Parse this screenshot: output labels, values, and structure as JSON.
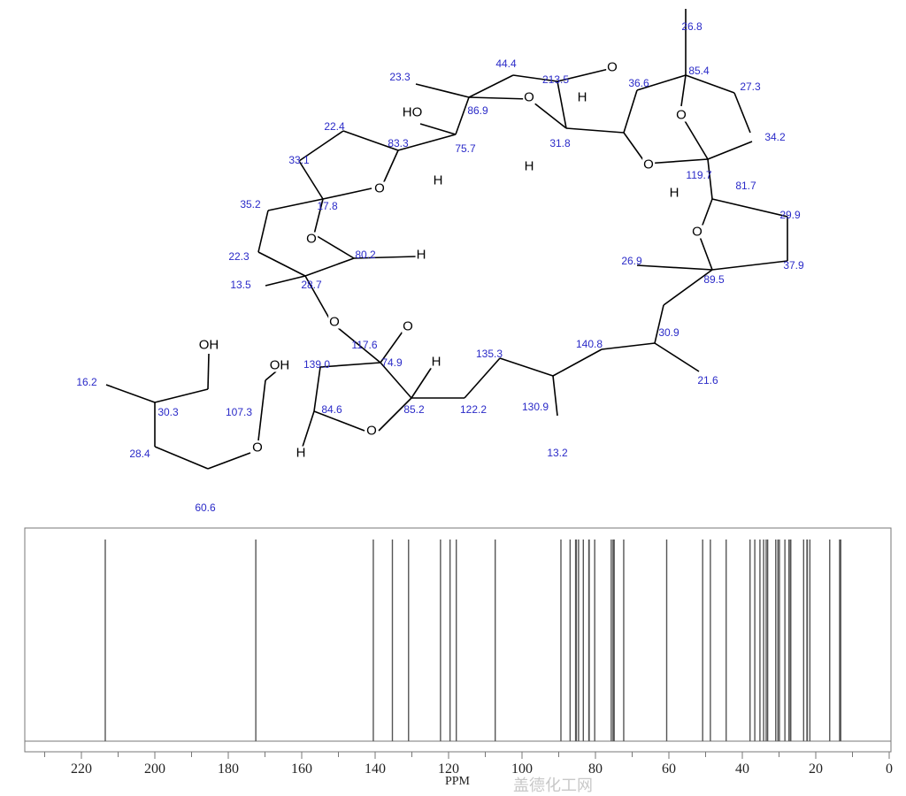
{
  "structure": {
    "shift_labels": [
      "26.8",
      "85.4",
      "27.3",
      "34.2",
      "36.6",
      "213.5",
      "44.4",
      "23.3",
      "86.9",
      "22.4",
      "83.3",
      "75.7",
      "31.8",
      "119.7",
      "81.7",
      "33.1",
      "17.8",
      "35.2",
      "29.9",
      "22.3",
      "80.2",
      "26.9",
      "89.5",
      "37.9",
      "13.5",
      "28.7",
      "30.9",
      "140.8",
      "135.3",
      "74.9",
      "117.6",
      "139.0",
      "21.6",
      "16.2",
      "30.3",
      "107.3",
      "84.6",
      "85.2",
      "122.2",
      "130.9",
      "13.2",
      "28.4",
      "60.6"
    ],
    "atom_labels": [
      "O",
      "O",
      "O",
      "H",
      "H",
      "O",
      "H",
      "O",
      "HO",
      "H",
      "O",
      "O",
      "H",
      "O",
      "O",
      "H",
      "OH",
      "OH",
      "O",
      "H",
      "O"
    ]
  },
  "watermark": "盖德化工网",
  "chart_data": {
    "type": "bar",
    "title": "",
    "xlabel": "PPM",
    "ylabel": "",
    "xlim": [
      232,
      0
    ],
    "x_reversed": true,
    "xticks": [
      220,
      200,
      180,
      160,
      140,
      120,
      100,
      80,
      60,
      40,
      20,
      0
    ],
    "xtick_labels": [
      "220",
      "200",
      "180",
      "160",
      "140",
      "120",
      "100",
      "80",
      "60",
      "40",
      "20",
      "0"
    ],
    "minor_tick_step": 10,
    "grid": false,
    "line_color": "#555555",
    "peaks_ppm": [
      213.5,
      172.5,
      140.5,
      135.3,
      130.9,
      122.2,
      119.6,
      117.9,
      107.3,
      89.4,
      86.9,
      85.4,
      85.2,
      84.6,
      83.3,
      81.8,
      81.7,
      80.2,
      75.7,
      75.2,
      74.9,
      72.3,
      60.6,
      50.8,
      48.7,
      44.4,
      37.9,
      36.6,
      35.2,
      34.2,
      33.5,
      33.1,
      30.9,
      30.3,
      29.9,
      28.4,
      27.3,
      26.9,
      26.8,
      23.3,
      22.4,
      22.3,
      21.6,
      16.2,
      13.5,
      13.2
    ]
  }
}
